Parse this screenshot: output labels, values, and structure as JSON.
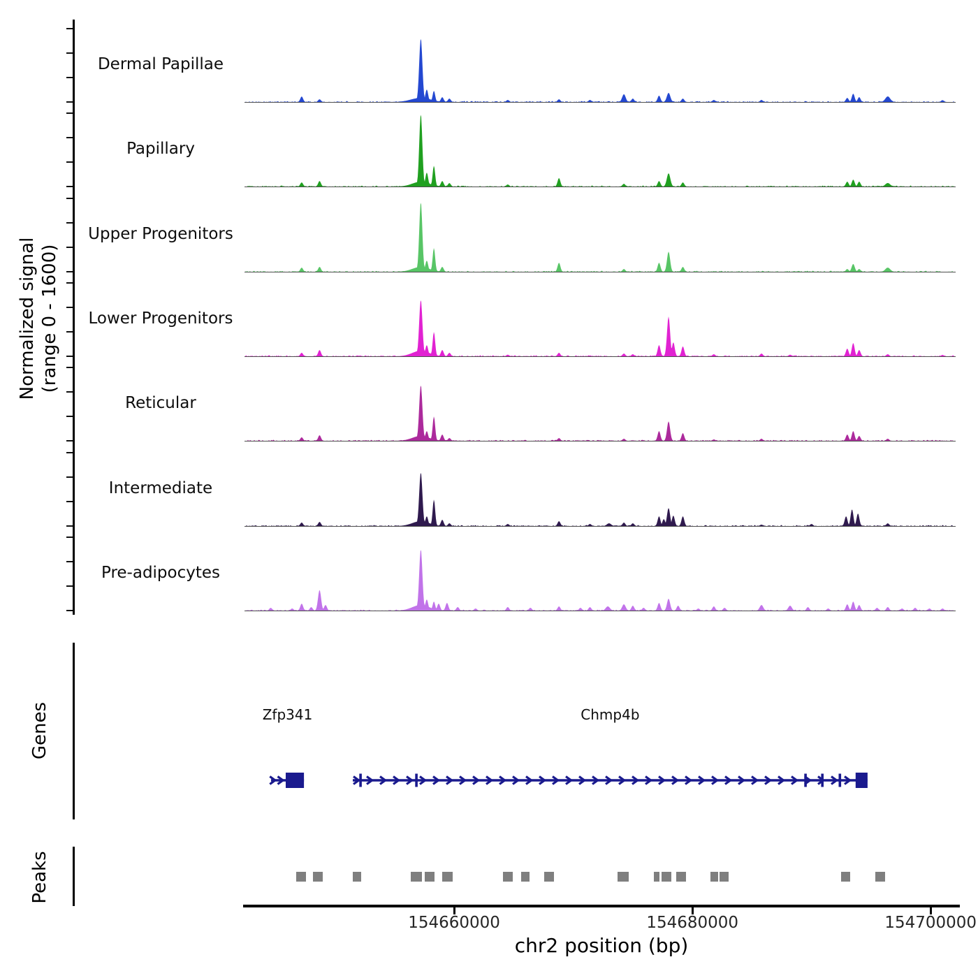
{
  "labels": {
    "y_axis_line1": "Normalized signal",
    "y_axis_line2": "(range 0 - 1600)",
    "genes_section": "Genes",
    "peaks_section": "Peaks"
  },
  "chart_data": {
    "type": "area",
    "title": "",
    "xlabel": "chr2 position (bp)",
    "ylabel": "Normalized signal (range 0 - 1600)",
    "grid": false,
    "legend": "none",
    "x_range_bp": [
      154642400,
      154702100
    ],
    "x_ticks": [
      154660000,
      154680000,
      154700000
    ],
    "x_tick_labels": [
      "154660000",
      "154680000",
      "154700000"
    ],
    "y_range_per_track": [
      0,
      1600
    ],
    "y_ticks_per_track": [
      0,
      533,
      1067,
      1600
    ],
    "tracks": [
      {
        "label": "Dermal Papillae",
        "color": "#2448d1",
        "peaks": [
          [
            154647200,
            120
          ],
          [
            154648700,
            60
          ],
          [
            154657200,
            1390,
            2.3
          ],
          [
            154657200,
            90,
            14
          ],
          [
            154657700,
            275
          ],
          [
            154658300,
            245,
            1.8
          ],
          [
            154659000,
            105
          ],
          [
            154659600,
            75
          ],
          [
            154664500,
            45
          ],
          [
            154668800,
            60
          ],
          [
            154671400,
            45
          ],
          [
            154674250,
            170,
            2.5
          ],
          [
            154675000,
            75
          ],
          [
            154677200,
            140
          ],
          [
            154678000,
            200,
            2.5
          ],
          [
            154679200,
            75
          ],
          [
            154681800,
            45
          ],
          [
            154685800,
            45
          ],
          [
            154693000,
            90
          ],
          [
            154693500,
            183
          ],
          [
            154694000,
            107
          ],
          [
            154696400,
            122,
            3.5
          ],
          [
            154701000,
            40
          ]
        ]
      },
      {
        "label": "Papillary",
        "color": "#20a020",
        "peaks": [
          [
            154647200,
            90
          ],
          [
            154648700,
            120
          ],
          [
            154657200,
            1585,
            2.2
          ],
          [
            154657200,
            105,
            12
          ],
          [
            154657700,
            305
          ],
          [
            154658300,
            455,
            1.8
          ],
          [
            154659000,
            120
          ],
          [
            154659600,
            75
          ],
          [
            154664500,
            45
          ],
          [
            154668800,
            185
          ],
          [
            154674250,
            60
          ],
          [
            154677200,
            120
          ],
          [
            154678000,
            290,
            2.5
          ],
          [
            154679200,
            90
          ],
          [
            154693000,
            107
          ],
          [
            154693500,
            152
          ],
          [
            154694000,
            107
          ],
          [
            154696400,
            76,
            3.5
          ]
        ]
      },
      {
        "label": "Upper Progenitors",
        "color": "#58c566",
        "peaks": [
          [
            154647200,
            90
          ],
          [
            154648700,
            107
          ],
          [
            154657200,
            1525,
            2.2
          ],
          [
            154657200,
            105,
            12
          ],
          [
            154657700,
            244
          ],
          [
            154658300,
            520,
            1.8
          ],
          [
            154659000,
            107
          ],
          [
            154668800,
            198
          ],
          [
            154674250,
            60
          ],
          [
            154677200,
            198
          ],
          [
            154678000,
            440,
            2.2
          ],
          [
            154679200,
            107
          ],
          [
            154693000,
            60
          ],
          [
            154693500,
            170,
            2.2
          ],
          [
            154694000,
            60
          ],
          [
            154696400,
            90,
            3.5
          ]
        ]
      },
      {
        "label": "Lower Progenitors",
        "color": "#e122d2",
        "peaks": [
          [
            154647200,
            76
          ],
          [
            154648700,
            137
          ],
          [
            154657200,
            1235,
            2.3
          ],
          [
            154657200,
            122,
            12
          ],
          [
            154657700,
            244
          ],
          [
            154658300,
            533,
            1.8
          ],
          [
            154659000,
            137
          ],
          [
            154659600,
            76
          ],
          [
            154664500,
            35
          ],
          [
            154668800,
            76
          ],
          [
            154674250,
            60
          ],
          [
            154675000,
            45
          ],
          [
            154677200,
            245
          ],
          [
            154678000,
            869,
            2.2
          ],
          [
            154678400,
            305
          ],
          [
            154679200,
            215
          ],
          [
            154681800,
            45
          ],
          [
            154685800,
            60
          ],
          [
            154688200,
            35
          ],
          [
            154693000,
            168
          ],
          [
            154693500,
            290
          ],
          [
            154694000,
            137
          ],
          [
            154696400,
            45
          ],
          [
            154701000,
            30
          ]
        ]
      },
      {
        "label": "Reticular",
        "color": "#ac2a9c",
        "peaks": [
          [
            154647200,
            76
          ],
          [
            154648700,
            122
          ],
          [
            154657200,
            1219,
            2.3
          ],
          [
            154657200,
            107,
            12
          ],
          [
            154657700,
            213
          ],
          [
            154658300,
            533,
            1.8
          ],
          [
            154659000,
            137
          ],
          [
            154659600,
            60
          ],
          [
            154668800,
            60
          ],
          [
            154674250,
            45
          ],
          [
            154677200,
            213
          ],
          [
            154678000,
            425,
            2.2
          ],
          [
            154679200,
            168
          ],
          [
            154681800,
            30
          ],
          [
            154685800,
            45
          ],
          [
            154693000,
            137
          ],
          [
            154693500,
            213
          ],
          [
            154694000,
            107
          ],
          [
            154696400,
            45
          ]
        ]
      },
      {
        "label": "Intermediate",
        "color": "#2f1a4e",
        "peaks": [
          [
            154647200,
            76
          ],
          [
            154648700,
            91
          ],
          [
            154657200,
            1173,
            2.3
          ],
          [
            154657200,
            107,
            12
          ],
          [
            154657700,
            213
          ],
          [
            154658300,
            579,
            1.8
          ],
          [
            154659000,
            137
          ],
          [
            154659600,
            60
          ],
          [
            154664500,
            45
          ],
          [
            154668800,
            107
          ],
          [
            154671400,
            45
          ],
          [
            154673000,
            60,
            3
          ],
          [
            154674250,
            76
          ],
          [
            154675000,
            60
          ],
          [
            154677200,
            213
          ],
          [
            154677600,
            152
          ],
          [
            154678000,
            395,
            2.2
          ],
          [
            154678400,
            229
          ],
          [
            154679200,
            213
          ],
          [
            154685800,
            30
          ],
          [
            154690000,
            45
          ],
          [
            154692900,
            213
          ],
          [
            154693400,
            365
          ],
          [
            154693900,
            275
          ],
          [
            154696400,
            60
          ]
        ]
      },
      {
        "label": "Pre-adipocytes",
        "color": "#c173e9",
        "peaks": [
          [
            154644600,
            60
          ],
          [
            154646400,
            45
          ],
          [
            154647200,
            152
          ],
          [
            154648000,
            76
          ],
          [
            154648700,
            450,
            2.2
          ],
          [
            154649200,
            122
          ],
          [
            154657200,
            1341,
            2.3
          ],
          [
            154657200,
            122,
            12
          ],
          [
            154657700,
            244
          ],
          [
            154658300,
            198,
            1.8
          ],
          [
            154658700,
            152
          ],
          [
            154659400,
            168
          ],
          [
            154660300,
            76
          ],
          [
            154661800,
            45
          ],
          [
            154664500,
            76
          ],
          [
            154666400,
            60
          ],
          [
            154668800,
            91
          ],
          [
            154670600,
            60
          ],
          [
            154671400,
            76
          ],
          [
            154672900,
            91,
            3
          ],
          [
            154674250,
            137,
            2.5
          ],
          [
            154675000,
            107
          ],
          [
            154675900,
            60
          ],
          [
            154677200,
            168
          ],
          [
            154678000,
            260,
            2.2
          ],
          [
            154678800,
            107
          ],
          [
            154680500,
            45
          ],
          [
            154681800,
            91
          ],
          [
            154682700,
            60
          ],
          [
            154685800,
            122,
            2.5
          ],
          [
            154688200,
            107,
            2.5
          ],
          [
            154689700,
            76
          ],
          [
            154691400,
            45
          ],
          [
            154693000,
            137
          ],
          [
            154693500,
            198
          ],
          [
            154694000,
            122
          ],
          [
            154695500,
            60
          ],
          [
            154696400,
            76
          ],
          [
            154697600,
            45
          ],
          [
            154698700,
            60
          ],
          [
            154699900,
            45
          ],
          [
            154701000,
            45
          ]
        ]
      }
    ],
    "genes": [
      {
        "name": "Zfp341",
        "start_bp": 154644630,
        "end_bp": 154647390,
        "strand": "+",
        "exon_boxes": [
          [
            154645860,
            154647390
          ]
        ],
        "exon_ticks": [],
        "chevrons_bp": [
          154644880,
          154645540
        ]
      },
      {
        "name": "Chmp4b",
        "start_bp": 154651490,
        "end_bp": 154694700,
        "strand": "+",
        "exon_boxes": [
          [
            154693700,
            154694700
          ]
        ],
        "exon_ticks": [
          154652140,
          154656830,
          154689500,
          154690910,
          154692380
        ],
        "chevrons_bp": null
      }
    ],
    "gene_color": "#1a1a8e",
    "peak_box_color": "#7f7f7f",
    "peak_boxes_bp": [
      [
        154646740,
        154647560
      ],
      [
        154648150,
        154648970
      ],
      [
        154651490,
        154652200
      ],
      [
        154656360,
        154657300
      ],
      [
        154657530,
        154658350
      ],
      [
        154659000,
        154659880
      ],
      [
        154664100,
        154664920
      ],
      [
        154665630,
        154666330
      ],
      [
        154667560,
        154668380
      ],
      [
        154673720,
        154674660
      ],
      [
        154676770,
        154677240
      ],
      [
        154677420,
        154678240
      ],
      [
        154678650,
        154679470
      ],
      [
        154681520,
        154682170
      ],
      [
        154682280,
        154683050
      ],
      [
        154692490,
        154693250
      ],
      [
        154695360,
        154696180
      ]
    ]
  }
}
